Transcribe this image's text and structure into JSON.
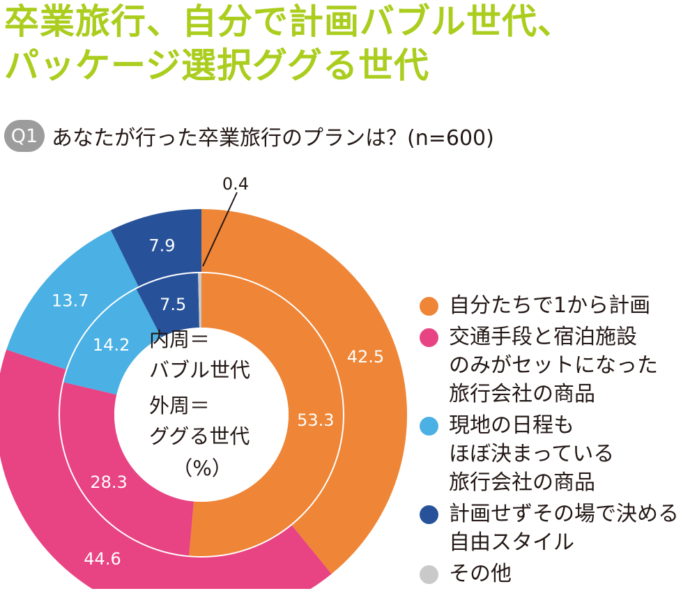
{
  "title": {
    "line1": "卒業旅行、自分で計画バブル世代、",
    "line2": "パッケージ選択ググる世代"
  },
  "question": {
    "badge": "Q1",
    "text": "あなたが行った卒業旅行のプランは？(n=600)"
  },
  "center_label": {
    "inner_line1": "内周＝",
    "inner_line2": "バブル世代",
    "outer_line1": "外周＝",
    "outer_line2": "ググる世代",
    "unit": "（%）"
  },
  "legend": [
    {
      "lines": [
        "自分たちで1から計画"
      ],
      "color": "#ef8536"
    },
    {
      "lines": [
        "交通手段と宿泊施設",
        "のみがセットになった",
        "旅行会社の商品"
      ],
      "color": "#e84383"
    },
    {
      "lines": [
        "現地の日程も",
        "ほぼ決まっている",
        "旅行会社の商品"
      ],
      "color": "#4bb0e4"
    },
    {
      "lines": [
        "計画せずその場で決める",
        "自由スタイル"
      ],
      "color": "#27529a"
    },
    {
      "lines": [
        "その他"
      ],
      "color": "#c9c9c9"
    }
  ],
  "chart_data": {
    "type": "pie",
    "variant": "nested-donut",
    "categories": [
      "自分たちで1から計画",
      "交通手段と宿泊施設のみがセットになった旅行会社の商品",
      "現地の日程もほぼ決まっている旅行会社の商品",
      "計画せずその場で決める自由スタイル",
      "その他"
    ],
    "series": [
      {
        "ring": "inner",
        "name": "バブル世代",
        "values": [
          53.3,
          28.3,
          14.2,
          7.5,
          0.4
        ],
        "labels": [
          "53.3",
          "28.3",
          "14.2",
          "7.5",
          "0.4"
        ]
      },
      {
        "ring": "outer",
        "name": "ググる世代",
        "values": [
          42.5,
          44.6,
          13.7,
          7.9,
          0
        ],
        "labels": [
          "42.5",
          "44.6",
          "13.7",
          "7.9",
          ""
        ]
      }
    ],
    "colors": [
      "#ef8536",
      "#e84383",
      "#4bb0e4",
      "#27529a",
      "#c9c9c9"
    ],
    "unit": "%",
    "legend_position": "right"
  }
}
